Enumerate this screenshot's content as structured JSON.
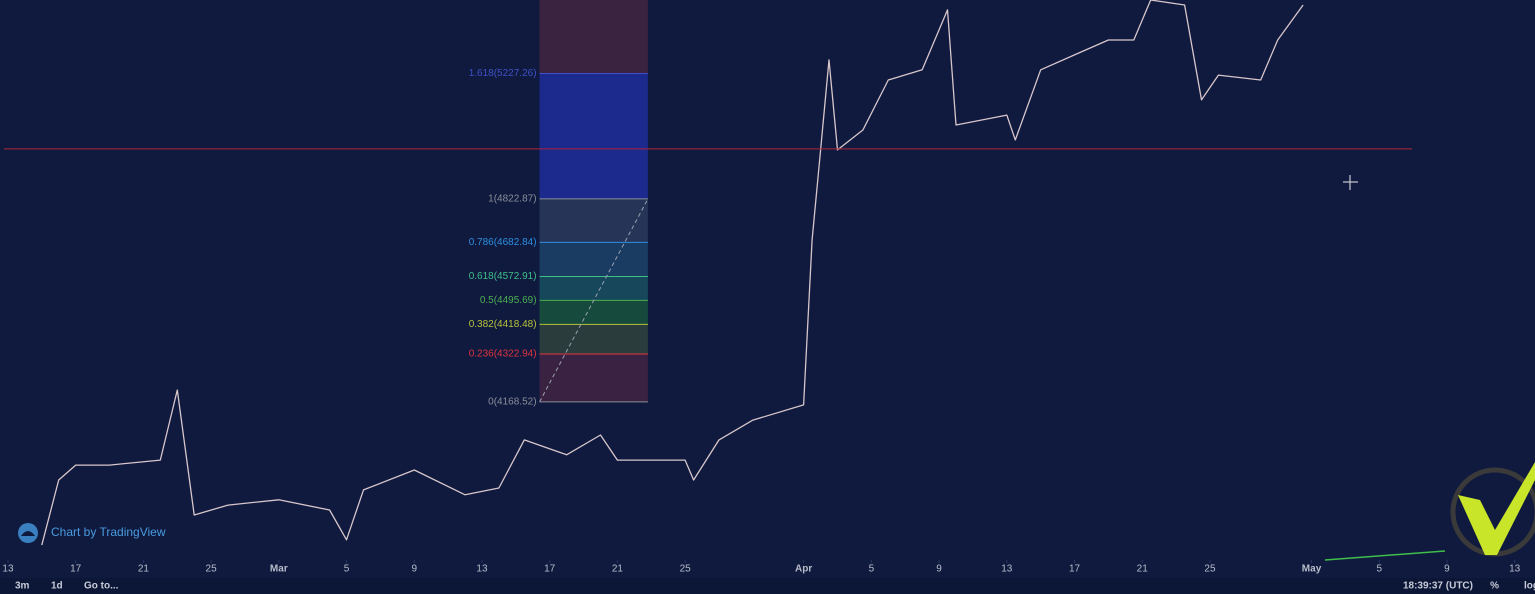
{
  "chart_data": {
    "type": "line",
    "color": "#d8c6cb",
    "background": "#0f1a3e",
    "xlim": [
      43.53,
      134.2
    ],
    "ylim": [
      3659,
      5464
    ],
    "xticks": [
      {
        "value": 44,
        "label": "13"
      },
      {
        "value": 48,
        "label": "17"
      },
      {
        "value": 52,
        "label": "21"
      },
      {
        "value": 56,
        "label": "25"
      },
      {
        "value": 60,
        "label": "Mar"
      },
      {
        "value": 64,
        "label": "5"
      },
      {
        "value": 68,
        "label": "9"
      },
      {
        "value": 72,
        "label": "13"
      },
      {
        "value": 76,
        "label": "17"
      },
      {
        "value": 80,
        "label": "21"
      },
      {
        "value": 84,
        "label": "25"
      },
      {
        "value": 91,
        "label": "Apr"
      },
      {
        "value": 95,
        "label": "5"
      },
      {
        "value": 99,
        "label": "9"
      },
      {
        "value": 103,
        "label": "13"
      },
      {
        "value": 107,
        "label": "17"
      },
      {
        "value": 111,
        "label": "21"
      },
      {
        "value": 115,
        "label": "25"
      },
      {
        "value": 121,
        "label": "May"
      },
      {
        "value": 125,
        "label": "5"
      },
      {
        "value": 129,
        "label": "9"
      },
      {
        "value": 133,
        "label": "13"
      }
    ],
    "x": [
      46,
      47,
      48,
      50,
      53,
      54,
      55,
      57,
      60,
      63,
      64,
      65,
      68,
      71,
      73,
      74.5,
      77,
      79,
      80,
      84,
      84.5,
      86,
      88,
      91,
      91.5,
      92,
      92.5,
      93,
      94.5,
      96,
      98,
      99.5,
      100,
      103,
      103.5,
      105,
      107,
      109,
      110.5,
      111.5,
      113.5,
      114.5,
      115.5,
      118,
      119,
      120.5
    ],
    "values": [
      3707,
      3917,
      3965,
      3965,
      3981,
      4207,
      3804,
      3836,
      3853,
      3820,
      3724,
      3885,
      3949,
      3869,
      3891,
      4046,
      3998,
      4062,
      3981,
      3981,
      3917,
      4046,
      4110,
      4159,
      4691,
      4981,
      5271,
      4981,
      5045,
      5206,
      5239,
      5432,
      5061,
      5093,
      5013,
      5239,
      5287,
      5335,
      5335,
      5464,
      5448,
      5142,
      5222,
      5206,
      5335,
      5448
    ],
    "horizontal_line": {
      "value": 4984,
      "color": "#b0263a"
    },
    "fib": {
      "x": [
        75.4,
        81.8
      ],
      "top_fill": "#3a2340",
      "levels": [
        {
          "value": 5227.26,
          "label": "1.618(5227.26)",
          "color": "#3f51c8",
          "fill": "#1b2a8c"
        },
        {
          "value": 4822.87,
          "label": "1(4822.87)",
          "color": "#8a8d99",
          "fill": "#253457"
        },
        {
          "value": 4682.84,
          "label": "0.786(4682.84)",
          "color": "#2f8fe0",
          "fill": "#1a3c62"
        },
        {
          "value": 4572.91,
          "label": "0.618(4572.91)",
          "color": "#3fbf8a",
          "fill": "#16475a"
        },
        {
          "value": 4495.69,
          "label": "0.5(4495.69)",
          "color": "#4caf50",
          "fill": "#154a3d"
        },
        {
          "value": 4418.48,
          "label": "0.382(4418.48)",
          "color": "#b8c23a",
          "fill": "#2a3c3b"
        },
        {
          "value": 4322.94,
          "label": "0.236(4322.94)",
          "color": "#e0343f",
          "fill": "#3a2342"
        },
        {
          "value": 4168.52,
          "label": "0(4168.52)",
          "color": "#8a8d99"
        }
      ]
    }
  },
  "watermark": "Chart by TradingView",
  "toolbar": {
    "left": [
      "3m",
      "1d",
      "Go to..."
    ],
    "right": [
      "18:39:37 (UTC)",
      "%",
      "log"
    ]
  }
}
